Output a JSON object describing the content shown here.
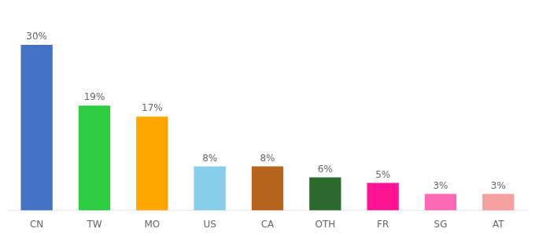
{
  "chart_data": {
    "type": "bar",
    "categories": [
      "CN",
      "TW",
      "MO",
      "US",
      "CA",
      "OTH",
      "FR",
      "SG",
      "AT"
    ],
    "values": [
      30,
      19,
      17,
      8,
      8,
      6,
      5,
      3,
      3
    ],
    "value_labels": [
      "30%",
      "19%",
      "17%",
      "8%",
      "8%",
      "6%",
      "5%",
      "3%",
      "3%"
    ],
    "colors": [
      "#4472c4",
      "#2ecc40",
      "#ffa500",
      "#87ceeb",
      "#b5651d",
      "#2d6a2d",
      "#ff1493",
      "#ff69b4",
      "#f4a0a0"
    ],
    "ylim": [
      0,
      35
    ],
    "grid": false,
    "data_labels": true,
    "tick_labels": "x"
  }
}
